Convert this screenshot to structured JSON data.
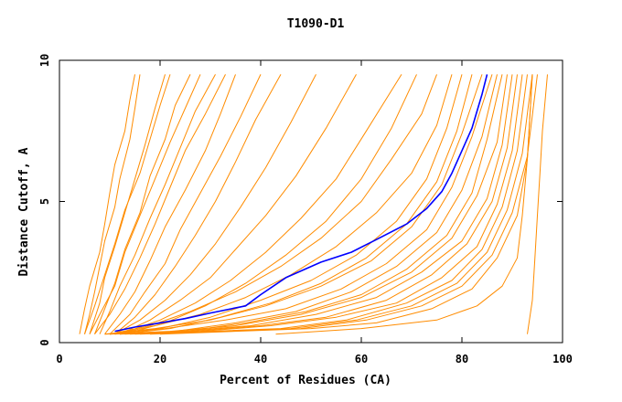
{
  "chart_data": {
    "type": "line",
    "title": "T1090-D1",
    "xlabel": "Percent of Residues (CA)",
    "ylabel": "Distance Cutoff, A",
    "xlim": [
      0,
      100
    ],
    "ylim": [
      0,
      10
    ],
    "x_ticks": [
      "0",
      "20",
      "40",
      "60",
      "80",
      "100"
    ],
    "y_ticks": [
      "0",
      "5",
      "10"
    ],
    "grid": false,
    "legend": "none",
    "colors": {
      "models": "#ff8c00",
      "highlight": "#0000ff",
      "axis": "#000000"
    },
    "highlight_series": {
      "x": [
        11,
        15,
        20,
        25,
        30,
        37,
        40,
        45,
        52,
        58,
        63,
        69,
        73,
        76,
        78,
        80,
        82,
        84,
        85
      ],
      "y": [
        0.4,
        0.55,
        0.7,
        0.85,
        1.05,
        1.3,
        1.7,
        2.3,
        2.85,
        3.2,
        3.65,
        4.2,
        4.75,
        5.35,
        6.0,
        6.8,
        7.6,
        8.8,
        9.5
      ]
    },
    "model_series": [
      {
        "x": [
          5,
          6,
          7,
          8,
          9,
          11,
          12,
          14,
          15,
          16
        ],
        "y": [
          0.3,
          1.0,
          1.8,
          2.7,
          3.6,
          4.8,
          5.8,
          7.2,
          8.3,
          9.5
        ]
      },
      {
        "x": [
          4,
          5,
          6,
          8,
          9,
          10,
          11,
          13,
          14,
          15
        ],
        "y": [
          0.3,
          1.2,
          2.0,
          3.2,
          4.2,
          5.3,
          6.3,
          7.5,
          8.6,
          9.5
        ]
      },
      {
        "x": [
          6,
          8,
          9,
          11,
          13,
          15,
          17,
          19,
          21
        ],
        "y": [
          0.3,
          1.4,
          2.3,
          3.4,
          4.6,
          5.8,
          7.0,
          8.3,
          9.5
        ]
      },
      {
        "x": [
          5,
          7,
          9,
          11,
          13,
          16,
          18,
          20,
          22
        ],
        "y": [
          0.3,
          1.3,
          2.4,
          3.5,
          4.7,
          6.0,
          7.2,
          8.4,
          9.5
        ]
      },
      {
        "x": [
          7,
          9,
          11,
          13,
          16,
          18,
          21,
          23,
          26
        ],
        "y": [
          0.3,
          1.2,
          2.1,
          3.3,
          4.6,
          5.9,
          7.2,
          8.4,
          9.5
        ]
      },
      {
        "x": [
          6,
          8,
          11,
          13,
          16,
          19,
          22,
          25,
          28
        ],
        "y": [
          0.3,
          1.0,
          2.0,
          3.2,
          4.5,
          5.8,
          7.1,
          8.3,
          9.5
        ]
      },
      {
        "x": [
          8,
          10,
          12,
          15,
          18,
          21,
          24,
          27,
          31
        ],
        "y": [
          0.3,
          1.1,
          2.0,
          3.1,
          4.4,
          5.6,
          6.9,
          8.2,
          9.5
        ]
      },
      {
        "x": [
          7,
          10,
          13,
          16,
          19,
          22,
          25,
          29,
          33
        ],
        "y": [
          0.3,
          1.0,
          1.9,
          3.0,
          4.2,
          5.5,
          6.8,
          8.1,
          9.5
        ]
      },
      {
        "x": [
          9,
          12,
          15,
          18,
          21,
          25,
          29,
          32,
          35
        ],
        "y": [
          0.3,
          1.0,
          1.8,
          2.9,
          4.1,
          5.4,
          6.8,
          8.1,
          9.5
        ]
      },
      {
        "x": [
          10,
          14,
          17,
          21,
          24,
          28,
          32,
          36,
          40
        ],
        "y": [
          0.3,
          1.0,
          1.8,
          2.8,
          4.0,
          5.3,
          6.6,
          8.0,
          9.5
        ]
      },
      {
        "x": [
          11,
          15,
          19,
          23,
          27,
          31,
          35,
          39,
          44
        ],
        "y": [
          0.3,
          0.9,
          1.7,
          2.7,
          3.8,
          5.0,
          6.4,
          7.9,
          9.5
        ]
      },
      {
        "x": [
          11,
          16,
          21,
          26,
          31,
          36,
          41,
          46,
          51
        ],
        "y": [
          0.3,
          0.8,
          1.5,
          2.4,
          3.5,
          4.8,
          6.2,
          7.8,
          9.5
        ]
      },
      {
        "x": [
          12,
          18,
          24,
          30,
          35,
          41,
          47,
          53,
          59
        ],
        "y": [
          0.3,
          0.8,
          1.5,
          2.3,
          3.3,
          4.5,
          5.9,
          7.6,
          9.5
        ]
      },
      {
        "x": [
          12,
          20,
          27,
          34,
          41,
          48,
          55,
          61,
          68
        ],
        "y": [
          0.3,
          0.8,
          1.4,
          2.2,
          3.2,
          4.4,
          5.8,
          7.5,
          9.5
        ]
      },
      {
        "x": [
          13,
          21,
          29,
          37,
          45,
          53,
          60,
          66,
          71
        ],
        "y": [
          0.3,
          0.7,
          1.3,
          2.1,
          3.1,
          4.3,
          5.8,
          7.6,
          9.5
        ]
      },
      {
        "x": [
          10,
          18,
          26,
          35,
          44,
          52,
          60,
          66,
          72,
          75
        ],
        "y": [
          0.3,
          0.6,
          1.1,
          1.8,
          2.7,
          3.7,
          5.0,
          6.5,
          8.1,
          9.5
        ]
      },
      {
        "x": [
          11,
          19,
          28,
          37,
          46,
          55,
          63,
          70,
          75,
          78
        ],
        "y": [
          0.3,
          0.6,
          1.0,
          1.6,
          2.4,
          3.4,
          4.6,
          6.0,
          7.7,
          9.5
        ]
      },
      {
        "x": [
          10,
          20,
          30,
          40,
          50,
          59,
          67,
          73,
          77,
          80
        ],
        "y": [
          0.3,
          0.5,
          0.9,
          1.5,
          2.2,
          3.1,
          4.3,
          5.8,
          7.6,
          9.5
        ]
      },
      {
        "x": [
          12,
          22,
          32,
          42,
          52,
          61,
          69,
          75,
          79,
          82
        ],
        "y": [
          0.3,
          0.5,
          0.9,
          1.4,
          2.1,
          3.0,
          4.2,
          5.7,
          7.5,
          9.5
        ]
      },
      {
        "x": [
          9,
          19,
          30,
          41,
          52,
          62,
          70,
          76,
          80,
          84
        ],
        "y": [
          0.3,
          0.5,
          0.8,
          1.3,
          2.0,
          2.9,
          4.1,
          5.6,
          7.4,
          9.5
        ]
      },
      {
        "x": [
          10,
          21,
          33,
          45,
          56,
          65,
          73,
          78,
          82,
          86
        ],
        "y": [
          0.3,
          0.5,
          0.8,
          1.2,
          1.9,
          2.8,
          4.0,
          5.5,
          7.3,
          9.5
        ]
      },
      {
        "x": [
          11,
          23,
          35,
          47,
          58,
          67,
          75,
          80,
          84,
          87
        ],
        "y": [
          0.3,
          0.4,
          0.7,
          1.1,
          1.8,
          2.7,
          3.9,
          5.4,
          7.3,
          9.5
        ]
      },
      {
        "x": [
          13,
          25,
          37,
          49,
          60,
          69,
          77,
          82,
          85,
          88
        ],
        "y": [
          0.3,
          0.4,
          0.7,
          1.1,
          1.7,
          2.6,
          3.8,
          5.3,
          7.2,
          9.5
        ]
      },
      {
        "x": [
          9,
          22,
          35,
          48,
          60,
          70,
          78,
          83,
          87,
          89
        ],
        "y": [
          0.3,
          0.4,
          0.6,
          1.0,
          1.6,
          2.5,
          3.7,
          5.2,
          7.1,
          9.5
        ]
      },
      {
        "x": [
          10,
          24,
          38,
          51,
          63,
          72,
          80,
          85,
          88,
          90
        ],
        "y": [
          0.3,
          0.4,
          0.6,
          1.0,
          1.6,
          2.5,
          3.6,
          5.1,
          7.0,
          9.5
        ]
      },
      {
        "x": [
          12,
          26,
          40,
          53,
          65,
          74,
          81,
          86,
          89,
          91
        ],
        "y": [
          0.3,
          0.4,
          0.6,
          0.9,
          1.5,
          2.4,
          3.5,
          5.0,
          6.9,
          9.5
        ]
      },
      {
        "x": [
          14,
          28,
          42,
          55,
          67,
          76,
          83,
          87,
          90,
          92
        ],
        "y": [
          0.3,
          0.4,
          0.6,
          0.9,
          1.4,
          2.3,
          3.4,
          4.9,
          6.8,
          9.5
        ]
      },
      {
        "x": [
          15,
          30,
          44,
          57,
          69,
          78,
          84,
          88,
          91,
          93
        ],
        "y": [
          0.3,
          0.4,
          0.5,
          0.8,
          1.4,
          2.2,
          3.3,
          4.8,
          6.8,
          9.5
        ]
      },
      {
        "x": [
          16,
          31,
          46,
          59,
          70,
          79,
          85,
          89,
          92,
          94
        ],
        "y": [
          0.3,
          0.4,
          0.5,
          0.8,
          1.3,
          2.1,
          3.2,
          4.7,
          6.7,
          9.5
        ]
      },
      {
        "x": [
          18,
          33,
          48,
          61,
          72,
          80,
          86,
          90,
          93,
          95
        ],
        "y": [
          0.3,
          0.4,
          0.5,
          0.8,
          1.3,
          2.0,
          3.1,
          4.6,
          6.6,
          9.5
        ]
      },
      {
        "x": [
          20,
          35,
          50,
          63,
          74,
          82,
          87,
          91,
          93,
          94
        ],
        "y": [
          0.3,
          0.4,
          0.5,
          0.7,
          1.2,
          1.9,
          3.0,
          4.5,
          6.5,
          9.5
        ]
      },
      {
        "x": [
          43,
          60,
          75,
          83,
          88,
          91,
          92,
          93,
          94
        ],
        "y": [
          0.3,
          0.5,
          0.8,
          1.3,
          2.0,
          3.0,
          4.5,
          6.5,
          9.5
        ]
      },
      {
        "x": [
          93,
          94,
          94.5,
          95,
          95.5,
          96,
          97
        ],
        "y": [
          0.3,
          1.5,
          3.0,
          4.5,
          6.0,
          7.5,
          9.5
        ]
      }
    ]
  }
}
